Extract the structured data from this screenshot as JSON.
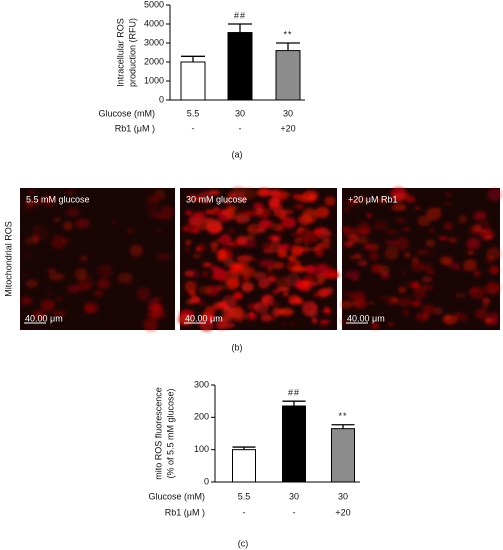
{
  "chart_data": [
    {
      "type": "bar",
      "panel_label": "(a)",
      "ylabel": [
        "Intracellular ROS",
        "production (RFU)"
      ],
      "categories": [
        "5.5 mM glucose",
        "30 mM glucose",
        "30 mM glucose + 20 μM Rb1"
      ],
      "values": [
        2000,
        3550,
        2600
      ],
      "errors": [
        300,
        450,
        400
      ],
      "colors": [
        "#ffffff",
        "#000000",
        "#8c8c8c"
      ],
      "annotations": [
        null,
        "##",
        "**"
      ],
      "rows": [
        {
          "label": "Glucose (mM)",
          "values": [
            "5.5",
            "30",
            "30"
          ]
        },
        {
          "label": "Rb1 (μM )",
          "values": [
            "-",
            "-",
            "+20"
          ]
        }
      ],
      "ylim": [
        0,
        5000
      ],
      "yticks": [
        0,
        1000,
        2000,
        3000,
        4000,
        5000
      ]
    },
    {
      "type": "bar",
      "panel_label": "(c)",
      "ylabel": [
        "mito ROS fluorescence",
        "(% of 5.5 mM glucose)"
      ],
      "categories": [
        "5.5 mM glucose",
        "30 mM glucose",
        "30 mM glucose + 20 μM Rb1"
      ],
      "values": [
        100,
        235,
        165
      ],
      "errors": [
        8,
        15,
        12
      ],
      "colors": [
        "#ffffff",
        "#000000",
        "#8c8c8c"
      ],
      "annotations": [
        null,
        "##",
        "**"
      ],
      "rows": [
        {
          "label": "Glucose (mM)",
          "values": [
            "5.5",
            "30",
            "30"
          ]
        },
        {
          "label": "Rb1 (μM )",
          "values": [
            "-",
            "-",
            "+20"
          ]
        }
      ],
      "ylim": [
        0,
        300
      ],
      "yticks": [
        0,
        100,
        200,
        300
      ]
    }
  ],
  "images": {
    "side_label": "Mitochondrial ROS",
    "panel_label": "(b)",
    "scale_label": "40.00 μm",
    "titles": [
      "5.5 mM glucose",
      "30 mM glucose",
      "+20 μM Rb1"
    ]
  }
}
